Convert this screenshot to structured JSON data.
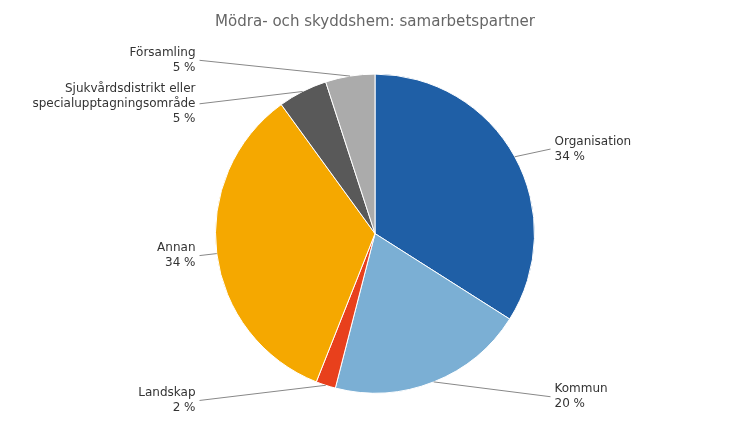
{
  "chart_data": {
    "type": "pie",
    "title": "Mödra- och skyddshem: samarbetspartner",
    "categories": [
      "Organisation",
      "Kommun",
      "Landskap",
      "Annan",
      "Sjukvårdsdistrikt eller\nspecialupptagningsområde",
      "Församling"
    ],
    "values": [
      34,
      20,
      2,
      34,
      5,
      5
    ],
    "value_labels": [
      "34 %",
      "20 %",
      "2 %",
      "34 %",
      "5 %",
      "5 %"
    ],
    "colors": [
      "#1F5FA6",
      "#7BAFD4",
      "#E8401C",
      "#F5A800",
      "#595959",
      "#ABABAB"
    ],
    "data_labels": true
  }
}
